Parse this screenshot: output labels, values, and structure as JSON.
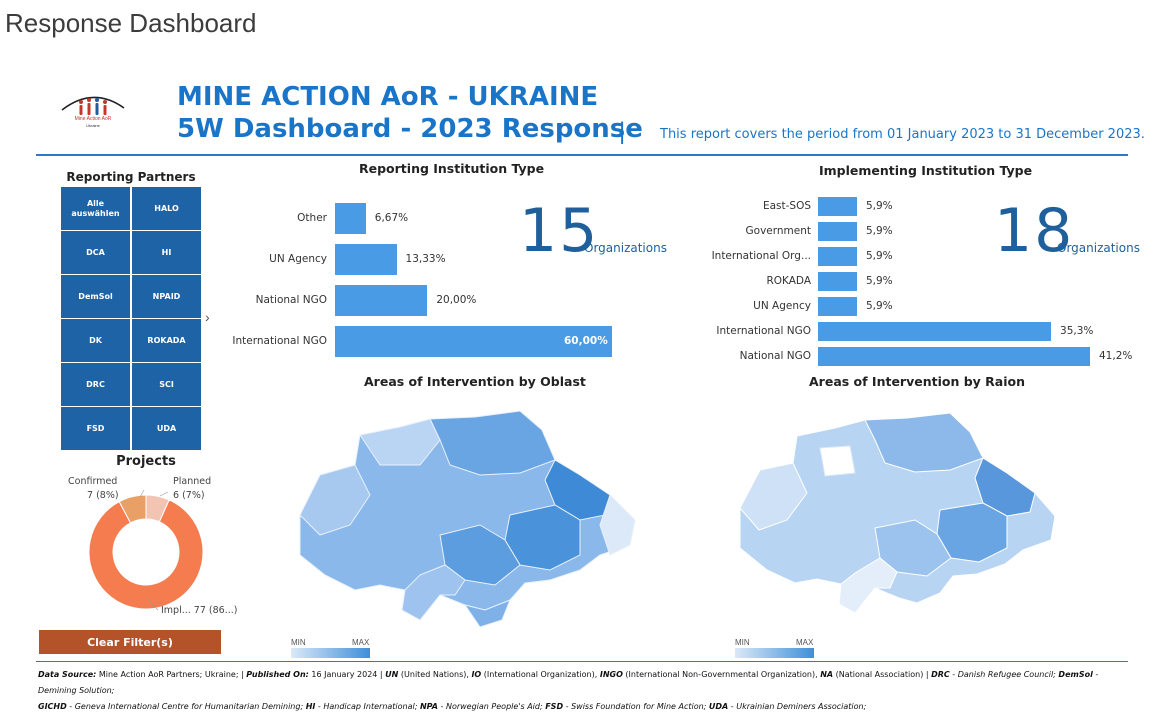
{
  "page": {
    "title": "Response Dashboard"
  },
  "header": {
    "logo_text": "Mine Action AoR",
    "logo_sub": "Ukraine",
    "title_line1": "MINE ACTION AoR - UKRAINE",
    "title_line2": "5W Dashboard - 2023 Response",
    "separator": "|",
    "period": "This report covers the period from 01 January 2023 to 31 December 2023."
  },
  "partners": {
    "title": "Reporting Partners",
    "tiles": [
      "Alle auswählen",
      "HALO",
      "DCA",
      "HI",
      "DemSol",
      "NPAID",
      "DK",
      "ROKADA",
      "DRC",
      "SCI",
      "FSD",
      "UDA"
    ],
    "arrow": "›"
  },
  "projects": {
    "title": "Projects",
    "confirmed_label": "Confirmed",
    "confirmed_value": "7 (8%)",
    "planned_label": "Planned",
    "planned_value": "6 (7%)",
    "implemented_label": "Impl... 77 (86...)"
  },
  "clear_button": "Clear Filter(s)",
  "kpi": {
    "reporting_count": "15",
    "implementing_count": "18",
    "unit": "Organizations"
  },
  "chart_data": [
    {
      "type": "bar",
      "title": "Reporting Institution Type",
      "categories": [
        "Other",
        "UN Agency",
        "National NGO",
        "International NGO"
      ],
      "values": [
        6.67,
        13.33,
        20.0,
        60.0
      ],
      "labels": [
        "6,67%",
        "13,33%",
        "20,00%",
        "60,00%"
      ],
      "xlim": [
        0,
        60
      ]
    },
    {
      "type": "bar",
      "title": "Implementing Institution Type",
      "categories": [
        "East-SOS",
        "Government",
        "International Org...",
        "ROKADA",
        "UN Agency",
        "International NGO",
        "National NGO"
      ],
      "values": [
        5.9,
        5.9,
        5.9,
        5.9,
        5.9,
        35.3,
        41.2
      ],
      "labels": [
        "5,9%",
        "5,9%",
        "5,9%",
        "5,9%",
        "5,9%",
        "35,3%",
        "41,2%"
      ],
      "xlim": [
        0,
        41.2
      ]
    },
    {
      "type": "heatmap",
      "title": "Areas of Intervention by Oblast",
      "legend_min": "MIN",
      "legend_max": "MAX"
    },
    {
      "type": "heatmap",
      "title": "Areas of Intervention by Raion",
      "legend_min": "MIN",
      "legend_max": "MAX"
    },
    {
      "type": "pie",
      "title": "Projects",
      "categories": [
        "Implemented",
        "Confirmed",
        "Planned"
      ],
      "values": [
        77,
        7,
        6
      ],
      "colors": [
        "#f47c4f",
        "#e9a067",
        "#f4c4b2"
      ]
    }
  ],
  "footer": {
    "line1": [
      {
        "b": "Data Source:",
        "t": " Mine Action AoR Partners; Ukraine;    |    "
      },
      {
        "b": "Published On:",
        "t": " 16 January 2024    |    "
      },
      {
        "b": "UN",
        "t": " (United Nations), "
      },
      {
        "b": "IO",
        "t": " (International Organization), "
      },
      {
        "b": "INGO",
        "t": " (International Non-Governmental Organization), "
      },
      {
        "b": "NA",
        "t": " (National Association)    |    "
      },
      {
        "b": "DRC",
        "t": " - Danish Refugee Council; "
      },
      {
        "b": "DemSol",
        "t": " - Demining Solution;"
      }
    ],
    "line2": [
      {
        "b": "GICHD",
        "t": " - Geneva International Centre for Humanitarian Demining; "
      },
      {
        "b": "HI",
        "t": " - Handicap International; "
      },
      {
        "b": "NPA",
        "t": " - Norwegian People's Aid; "
      },
      {
        "b": "FSD",
        "t": " - Swiss Foundation for Mine Action; "
      },
      {
        "b": "UDA",
        "t": " - Ukrainian Deminers Association;"
      }
    ]
  }
}
